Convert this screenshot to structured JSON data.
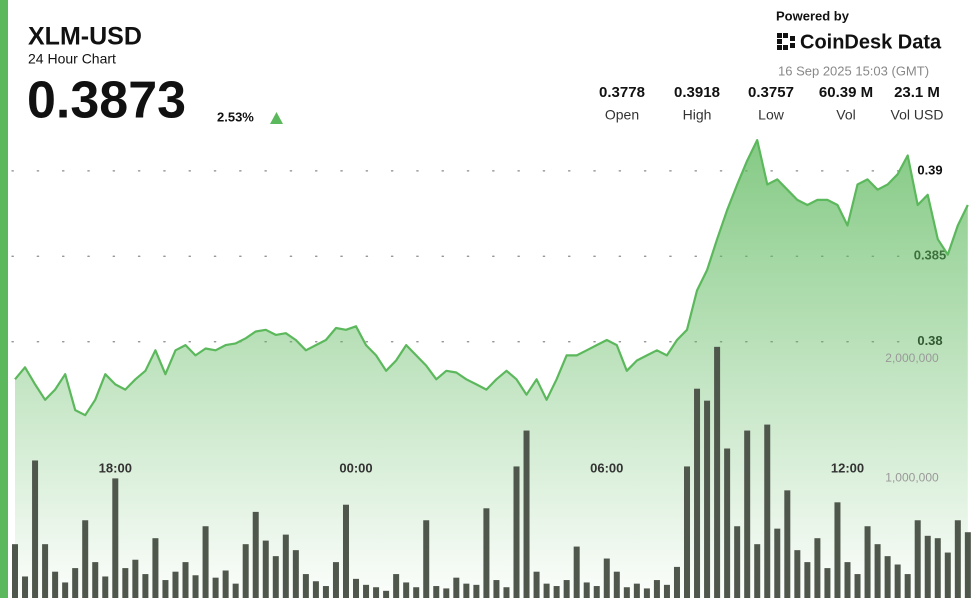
{
  "header": {
    "title": "XLM-USD",
    "subtitle": "24 Hour Chart",
    "price": "0.3873",
    "change": "2.53%",
    "powered_by": "Powered by",
    "brand": "CoinDesk Data",
    "timestamp": "16 Sep 2025 15:03 (GMT)"
  },
  "stats": [
    {
      "value": "0.3778",
      "label": "Open"
    },
    {
      "value": "0.3918",
      "label": "High"
    },
    {
      "value": "0.3757",
      "label": "Low"
    },
    {
      "value": "60.39 M",
      "label": "Vol"
    },
    {
      "value": "23.1 M",
      "label": "Vol USD"
    }
  ],
  "chart_data": {
    "type": "line",
    "x": [
      null,
      null,
      null,
      null,
      null,
      null,
      null,
      null,
      null,
      null,
      "18:00",
      null,
      null,
      null,
      null,
      null,
      null,
      null,
      null,
      null,
      null,
      null,
      null,
      null,
      null,
      null,
      null,
      null,
      null,
      null,
      null,
      null,
      null,
      null,
      "00:00",
      null,
      null,
      null,
      null,
      null,
      null,
      null,
      null,
      null,
      null,
      null,
      null,
      null,
      null,
      null,
      null,
      null,
      null,
      null,
      null,
      null,
      null,
      null,
      null,
      "06:00",
      null,
      null,
      null,
      null,
      null,
      null,
      null,
      null,
      null,
      null,
      null,
      null,
      null,
      null,
      null,
      null,
      null,
      null,
      null,
      null,
      null,
      null,
      null,
      "12:00",
      null,
      null,
      null,
      null,
      null,
      null,
      null,
      null,
      null,
      null,
      null,
      null
    ],
    "series": [
      {
        "color": "#5cb85c",
        "values": [
          0.3778,
          0.3785,
          0.3775,
          0.3766,
          0.3772,
          0.3781,
          0.376,
          0.3757,
          0.3766,
          0.3781,
          0.3775,
          0.3772,
          0.3778,
          0.3783,
          0.3795,
          0.3781,
          0.3795,
          0.3798,
          0.3792,
          0.3796,
          0.3795,
          0.3798,
          0.3799,
          0.3802,
          0.3806,
          0.3807,
          0.3804,
          0.3805,
          0.3801,
          0.3795,
          0.3798,
          0.3801,
          0.3808,
          0.3807,
          0.3809,
          0.3798,
          0.3792,
          0.3783,
          0.3789,
          0.3798,
          0.3792,
          0.3786,
          0.3778,
          0.3783,
          0.3782,
          0.3778,
          0.3775,
          0.3772,
          0.3778,
          0.3783,
          0.3778,
          0.3769,
          0.3778,
          0.3766,
          0.3778,
          0.3792,
          0.3792,
          0.3795,
          0.3798,
          0.3801,
          0.3798,
          0.3783,
          0.3789,
          0.3792,
          0.3795,
          0.3792,
          0.3801,
          0.3807,
          0.383,
          0.3842,
          0.386,
          0.3877,
          0.3892,
          0.3906,
          0.3918,
          0.3892,
          0.3895,
          0.3889,
          0.3883,
          0.388,
          0.3883,
          0.3883,
          0.388,
          0.3868,
          0.3892,
          0.3895,
          0.3889,
          0.3892,
          0.3898,
          0.3909,
          0.388,
          0.3886,
          0.386,
          0.3851,
          0.3868,
          0.388
        ]
      },
      {
        "type": "bar",
        "axis": "y2",
        "color": "#4f564b",
        "values": [
          450000,
          180000,
          1150000,
          450000,
          220000,
          130000,
          250000,
          650000,
          300000,
          180000,
          1000000,
          250000,
          320000,
          200000,
          500000,
          150000,
          220000,
          300000,
          190000,
          600000,
          170000,
          230000,
          120000,
          450000,
          720000,
          480000,
          350000,
          530000,
          400000,
          200000,
          140000,
          100000,
          300000,
          780000,
          160000,
          110000,
          90000,
          60000,
          200000,
          130000,
          90000,
          650000,
          100000,
          80000,
          170000,
          120000,
          110000,
          750000,
          150000,
          90000,
          1100000,
          1400000,
          220000,
          120000,
          100000,
          150000,
          430000,
          130000,
          100000,
          330000,
          220000,
          90000,
          120000,
          80000,
          150000,
          110000,
          260000,
          1100000,
          1750000,
          1650000,
          2100000,
          1250000,
          600000,
          1400000,
          450000,
          1450000,
          580000,
          900000,
          400000,
          300000,
          500000,
          250000,
          800000,
          300000,
          200000,
          600000,
          450000,
          350000,
          280000,
          200000,
          650000,
          520000,
          500000,
          380000,
          650000,
          550000
        ]
      }
    ],
    "ylim": [
      0.365,
      0.4
    ],
    "yticks": [
      0.38,
      0.385,
      0.39
    ],
    "y2lim": [
      0,
      5000000
    ],
    "y2ticks": [
      {
        "value": 1000000,
        "label": "1,000,000"
      },
      {
        "value": 2000000,
        "label": "2,000,000"
      }
    ],
    "grid": true
  }
}
